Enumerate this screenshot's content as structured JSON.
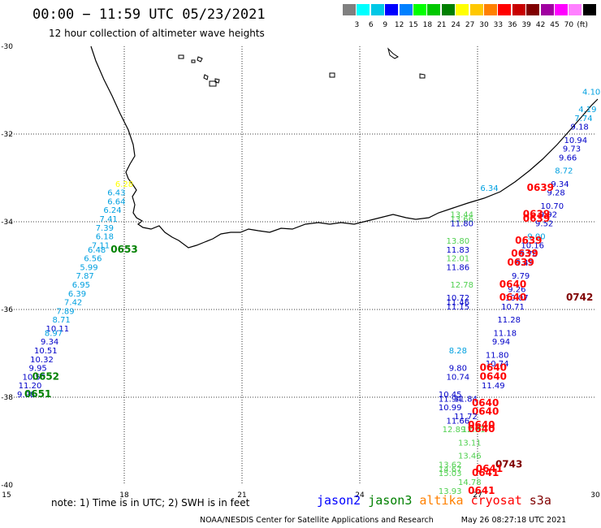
{
  "header": {
    "title": "00:00 − 11:59 UTC 05/23/2021",
    "subtitle": "12 hour collection of altimeter wave heights"
  },
  "colorbar": {
    "unit": "(ft)",
    "colors": [
      "#808080",
      "#00ffff",
      "#00c8e6",
      "#0000ff",
      "#0080ff",
      "#00ff00",
      "#00c800",
      "#008000",
      "#ffff00",
      "#ffc800",
      "#ff8000",
      "#ff0000",
      "#c80000",
      "#800000",
      "#a000a0",
      "#ff00ff",
      "#ff80ff",
      "#000000"
    ],
    "labels": [
      "3",
      "6",
      "9",
      "12",
      "15",
      "18",
      "21",
      "24",
      "27",
      "30",
      "33",
      "36",
      "39",
      "42",
      "45",
      "70"
    ]
  },
  "axes": {
    "x_ticks": [
      "15",
      "18",
      "21",
      "24",
      "27",
      "30"
    ],
    "y_ticks": [
      "-30",
      "-32",
      "-34",
      "-36",
      "-38",
      "-40"
    ]
  },
  "satellite_colors": {
    "jason2": "#0000c8",
    "jason3": "#008000",
    "altika": "#ff8000",
    "cryosat": "#ff0000",
    "s3a": "#800000",
    "cyan": "#00a0e0",
    "green": "#50d050",
    "yellow": "#ffff00"
  },
  "chart_data": {
    "type": "scatter",
    "xlabel": "",
    "ylabel": "",
    "xlim": [
      15,
      30
    ],
    "ylim": [
      -40,
      -30
    ],
    "grid": true,
    "observations": [
      {
        "lon": 18.0,
        "lat": -33.2,
        "label": "6.28",
        "color": "yellow"
      },
      {
        "lon": 17.8,
        "lat": -33.4,
        "label": "6.43",
        "color": "cyan"
      },
      {
        "lon": 17.8,
        "lat": -33.6,
        "label": "6.64",
        "color": "cyan"
      },
      {
        "lon": 17.7,
        "lat": -33.8,
        "label": "6.24",
        "color": "cyan"
      },
      {
        "lon": 17.6,
        "lat": -34.0,
        "label": "7.41",
        "color": "cyan"
      },
      {
        "lon": 17.5,
        "lat": -34.2,
        "label": "7.39",
        "color": "cyan"
      },
      {
        "lon": 17.5,
        "lat": -34.4,
        "label": "6.18",
        "color": "cyan"
      },
      {
        "lon": 17.4,
        "lat": -34.6,
        "label": "7.11",
        "color": "cyan"
      },
      {
        "lon": 17.3,
        "lat": -34.7,
        "label": "6.48",
        "color": "cyan"
      },
      {
        "lon": 17.2,
        "lat": -34.9,
        "label": "6.56",
        "color": "cyan"
      },
      {
        "lon": 17.1,
        "lat": -35.1,
        "label": "5.99",
        "color": "cyan"
      },
      {
        "lon": 17.0,
        "lat": -35.3,
        "label": "7.87",
        "color": "cyan"
      },
      {
        "lon": 16.9,
        "lat": -35.5,
        "label": "6.95",
        "color": "cyan"
      },
      {
        "lon": 16.8,
        "lat": -35.7,
        "label": "6.39",
        "color": "cyan"
      },
      {
        "lon": 16.7,
        "lat": -35.9,
        "label": "7.42",
        "color": "cyan"
      },
      {
        "lon": 16.5,
        "lat": -36.1,
        "label": "7.89",
        "color": "cyan"
      },
      {
        "lon": 16.4,
        "lat": -36.3,
        "label": "8.71",
        "color": "cyan"
      },
      {
        "lon": 16.3,
        "lat": -36.5,
        "label": "10.11",
        "color": "jason2"
      },
      {
        "lon": 16.2,
        "lat": -36.6,
        "label": "8.97",
        "color": "cyan"
      },
      {
        "lon": 16.1,
        "lat": -36.8,
        "label": "9.34",
        "color": "jason2"
      },
      {
        "lon": 16.0,
        "lat": -37.0,
        "label": "10.51",
        "color": "jason2"
      },
      {
        "lon": 15.9,
        "lat": -37.2,
        "label": "10.32",
        "color": "jason2"
      },
      {
        "lon": 15.8,
        "lat": -37.4,
        "label": "9.95",
        "color": "jason2"
      },
      {
        "lon": 15.7,
        "lat": -37.6,
        "label": "10.50",
        "color": "jason2"
      },
      {
        "lon": 15.6,
        "lat": -37.8,
        "label": "11.20",
        "color": "jason2"
      },
      {
        "lon": 15.5,
        "lat": -38.0,
        "label": "9.98",
        "color": "jason2"
      },
      {
        "lon": 18.0,
        "lat": -34.7,
        "label": "0653",
        "color": "jason3",
        "big": true
      },
      {
        "lon": 16.0,
        "lat": -37.6,
        "label": "0652",
        "color": "jason3",
        "big": true
      },
      {
        "lon": 15.8,
        "lat": -38.0,
        "label": "0651",
        "color": "jason3",
        "big": true
      },
      {
        "lon": 29.9,
        "lat": -31.1,
        "label": "4.10",
        "color": "cyan"
      },
      {
        "lon": 29.8,
        "lat": -31.5,
        "label": "4.19",
        "color": "cyan"
      },
      {
        "lon": 29.7,
        "lat": -31.7,
        "label": "7.74",
        "color": "cyan"
      },
      {
        "lon": 29.6,
        "lat": -31.9,
        "label": "9.18",
        "color": "jason2"
      },
      {
        "lon": 29.5,
        "lat": -32.2,
        "label": "10.94",
        "color": "jason2"
      },
      {
        "lon": 29.4,
        "lat": -32.4,
        "label": "9.73",
        "color": "jason2"
      },
      {
        "lon": 29.3,
        "lat": -32.6,
        "label": "9.66",
        "color": "jason2"
      },
      {
        "lon": 29.2,
        "lat": -32.9,
        "label": "8.72",
        "color": "cyan"
      },
      {
        "lon": 29.1,
        "lat": -33.2,
        "label": "9.34",
        "color": "jason2"
      },
      {
        "lon": 29.0,
        "lat": -33.4,
        "label": "9.28",
        "color": "jason2"
      },
      {
        "lon": 27.3,
        "lat": -33.3,
        "label": "6.34",
        "color": "cyan"
      },
      {
        "lon": 28.6,
        "lat": -33.3,
        "label": "0639",
        "color": "cryosat",
        "big": true
      },
      {
        "lon": 28.9,
        "lat": -33.7,
        "label": "10.70",
        "color": "jason2"
      },
      {
        "lon": 28.8,
        "lat": -33.9,
        "label": "9.92",
        "color": "jason2"
      },
      {
        "lon": 28.5,
        "lat": -33.9,
        "label": "0639",
        "color": "cryosat",
        "big": true
      },
      {
        "lon": 28.7,
        "lat": -34.1,
        "label": "9.52",
        "color": "jason2"
      },
      {
        "lon": 28.5,
        "lat": -34.0,
        "label": "0639",
        "color": "cryosat",
        "big": true
      },
      {
        "lon": 26.6,
        "lat": -33.9,
        "label": "13.44",
        "color": "green"
      },
      {
        "lon": 26.6,
        "lat": -34.0,
        "label": "13.66",
        "color": "green"
      },
      {
        "lon": 26.6,
        "lat": -34.1,
        "label": "11.80",
        "color": "jason2"
      },
      {
        "lon": 28.5,
        "lat": -34.4,
        "label": "9.00",
        "color": "cyan"
      },
      {
        "lon": 28.4,
        "lat": -34.6,
        "label": "10.16",
        "color": "jason2"
      },
      {
        "lon": 28.3,
        "lat": -34.5,
        "label": "0639",
        "color": "cryosat",
        "big": true
      },
      {
        "lon": 26.5,
        "lat": -34.5,
        "label": "13.80",
        "color": "green"
      },
      {
        "lon": 26.5,
        "lat": -34.7,
        "label": "11.83",
        "color": "jason2"
      },
      {
        "lon": 28.3,
        "lat": -34.8,
        "label": "9.76",
        "color": "jason2"
      },
      {
        "lon": 28.2,
        "lat": -34.8,
        "label": "0639",
        "color": "cryosat",
        "big": true
      },
      {
        "lon": 26.5,
        "lat": -34.9,
        "label": "12.01",
        "color": "green"
      },
      {
        "lon": 28.2,
        "lat": -35.0,
        "label": "9.49",
        "color": "jason2"
      },
      {
        "lon": 28.1,
        "lat": -35.0,
        "label": "0639",
        "color": "cryosat",
        "big": true
      },
      {
        "lon": 26.5,
        "lat": -35.1,
        "label": "11.86",
        "color": "jason2"
      },
      {
        "lon": 28.1,
        "lat": -35.3,
        "label": "9.79",
        "color": "jason2"
      },
      {
        "lon": 28.0,
        "lat": -35.6,
        "label": "9.26",
        "color": "jason2"
      },
      {
        "lon": 27.9,
        "lat": -35.5,
        "label": "0640",
        "color": "cryosat",
        "big": true
      },
      {
        "lon": 26.6,
        "lat": -35.5,
        "label": "12.78",
        "color": "green"
      },
      {
        "lon": 28.0,
        "lat": -35.8,
        "label": "10.07",
        "color": "jason2"
      },
      {
        "lon": 27.9,
        "lat": -35.8,
        "label": "0640",
        "color": "cryosat",
        "big": true
      },
      {
        "lon": 26.5,
        "lat": -35.8,
        "label": "10.72",
        "color": "jason2"
      },
      {
        "lon": 26.5,
        "lat": -35.9,
        "label": "11.46",
        "color": "jason2"
      },
      {
        "lon": 26.5,
        "lat": -36.0,
        "label": "11.15",
        "color": "jason2"
      },
      {
        "lon": 29.6,
        "lat": -35.8,
        "label": "0742",
        "color": "s3a",
        "big": true
      },
      {
        "lon": 27.9,
        "lat": -36.0,
        "label": "10.71",
        "color": "jason2"
      },
      {
        "lon": 27.8,
        "lat": -36.3,
        "label": "11.28",
        "color": "jason2"
      },
      {
        "lon": 27.7,
        "lat": -36.6,
        "label": "11.18",
        "color": "jason2"
      },
      {
        "lon": 27.6,
        "lat": -36.8,
        "label": "9.94",
        "color": "jason2"
      },
      {
        "lon": 26.5,
        "lat": -37.0,
        "label": "8.28",
        "color": "cyan"
      },
      {
        "lon": 27.5,
        "lat": -37.1,
        "label": "11.80",
        "color": "jason2"
      },
      {
        "lon": 27.5,
        "lat": -37.3,
        "label": "10.74",
        "color": "jason2"
      },
      {
        "lon": 27.4,
        "lat": -37.4,
        "label": "0640",
        "color": "cryosat",
        "big": true
      },
      {
        "lon": 26.5,
        "lat": -37.4,
        "label": "9.80",
        "color": "jason2"
      },
      {
        "lon": 27.4,
        "lat": -37.6,
        "label": "0640",
        "color": "cryosat",
        "big": true
      },
      {
        "lon": 26.5,
        "lat": -37.6,
        "label": "10.74",
        "color": "jason2"
      },
      {
        "lon": 27.4,
        "lat": -37.8,
        "label": "11.49",
        "color": "jason2"
      },
      {
        "lon": 26.3,
        "lat": -38.0,
        "label": "10.45",
        "color": "jason2"
      },
      {
        "lon": 26.7,
        "lat": -38.1,
        "label": "11.84",
        "color": "jason2"
      },
      {
        "lon": 26.3,
        "lat": -38.1,
        "label": "11.94",
        "color": "jason2"
      },
      {
        "lon": 27.2,
        "lat": -38.2,
        "label": "0640",
        "color": "cryosat",
        "big": true
      },
      {
        "lon": 26.3,
        "lat": -38.3,
        "label": "10.99",
        "color": "jason2"
      },
      {
        "lon": 27.2,
        "lat": -38.4,
        "label": "0640",
        "color": "cryosat",
        "big": true
      },
      {
        "lon": 26.7,
        "lat": -38.5,
        "label": "11.72",
        "color": "jason2"
      },
      {
        "lon": 26.5,
        "lat": -38.6,
        "label": "11.66",
        "color": "jason2"
      },
      {
        "lon": 27.1,
        "lat": -38.7,
        "label": "0640",
        "color": "cryosat",
        "big": true
      },
      {
        "lon": 26.4,
        "lat": -38.8,
        "label": "12.89",
        "color": "green"
      },
      {
        "lon": 26.9,
        "lat": -38.8,
        "label": "12.51",
        "color": "green"
      },
      {
        "lon": 27.1,
        "lat": -38.8,
        "label": "0640",
        "color": "cryosat",
        "big": true
      },
      {
        "lon": 26.8,
        "lat": -39.1,
        "label": "13.11",
        "color": "green"
      },
      {
        "lon": 26.8,
        "lat": -39.4,
        "label": "13.46",
        "color": "green"
      },
      {
        "lon": 27.8,
        "lat": -39.6,
        "label": "0743",
        "color": "s3a",
        "big": true
      },
      {
        "lon": 26.3,
        "lat": -39.6,
        "label": "13.62",
        "color": "green"
      },
      {
        "lon": 27.3,
        "lat": -39.7,
        "label": "0641",
        "color": "cryosat",
        "big": true
      },
      {
        "lon": 26.3,
        "lat": -39.7,
        "label": "14.67",
        "color": "green"
      },
      {
        "lon": 26.3,
        "lat": -39.8,
        "label": "15.03",
        "color": "green"
      },
      {
        "lon": 27.2,
        "lat": -39.8,
        "label": "0641",
        "color": "cryosat",
        "big": true
      },
      {
        "lon": 26.8,
        "lat": -40.0,
        "label": "14.78",
        "color": "green"
      },
      {
        "lon": 26.3,
        "lat": -40.2,
        "label": "13.93",
        "color": "green"
      },
      {
        "lon": 27.1,
        "lat": -40.2,
        "label": "0641",
        "color": "cryosat",
        "big": true
      }
    ]
  },
  "note": "note: 1) Time is in UTC; 2) SWH is in feet",
  "legend": [
    {
      "name": "jason2",
      "color": "#0000ff"
    },
    {
      "name": "jason3",
      "color": "#008000"
    },
    {
      "name": "altika",
      "color": "#ff8000"
    },
    {
      "name": "cryosat",
      "color": "#ff0000"
    },
    {
      "name": "s3a",
      "color": "#800000"
    }
  ],
  "footer": {
    "source": "NOAA/NESDIS Center for Satellite Applications and Research",
    "timestamp": "May 26 08:27:18 UTC 2021"
  }
}
